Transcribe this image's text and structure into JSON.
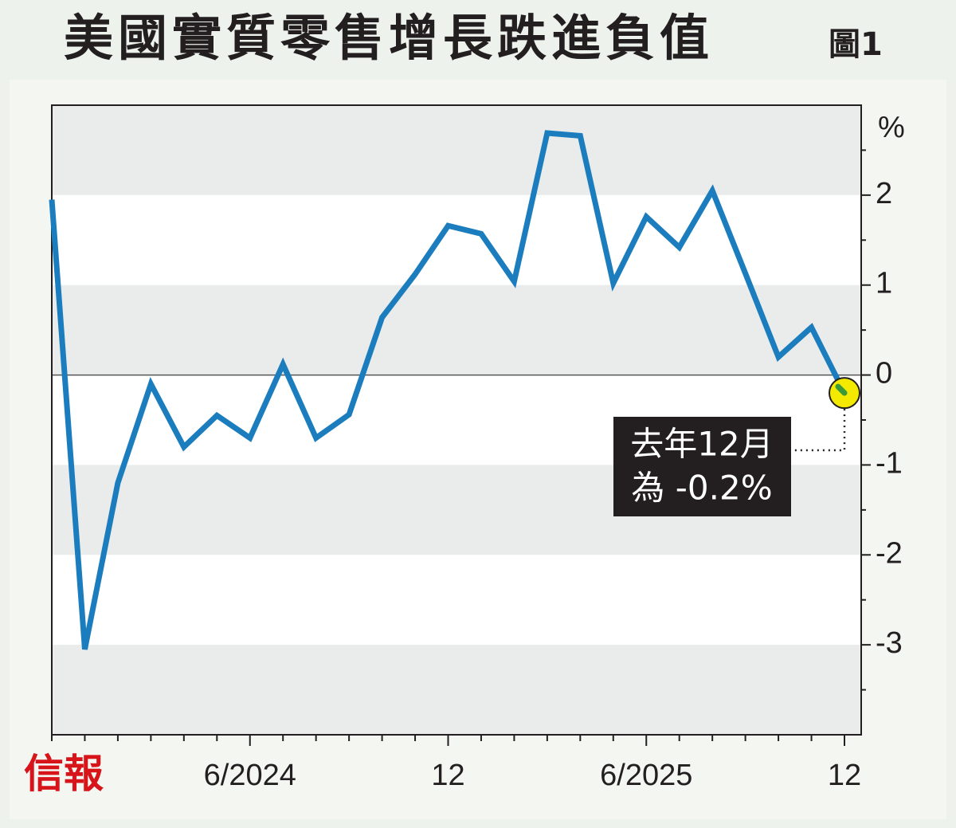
{
  "chart_data": {
    "type": "line",
    "title": "美國實質零售增長跌進負值",
    "figure_label": "圖1",
    "y_unit": "%",
    "source": "信報",
    "categories": [
      null,
      null,
      null,
      null,
      null,
      null,
      "6/2024",
      null,
      null,
      null,
      null,
      null,
      "12",
      null,
      null,
      null,
      null,
      null,
      "6/2025",
      null,
      null,
      null,
      null,
      null,
      "12"
    ],
    "series": [
      {
        "name": "實質零售增長",
        "color": "#1b7dbd",
        "values": [
          1.95,
          -3.05,
          -1.2,
          -0.1,
          -0.8,
          -0.45,
          -0.7,
          0.12,
          -0.7,
          -0.44,
          0.64,
          1.12,
          1.66,
          1.57,
          1.04,
          2.69,
          2.66,
          1.02,
          1.76,
          1.42,
          2.05,
          1.13,
          0.2,
          0.53,
          -0.2
        ]
      }
    ],
    "ylim": [
      -4,
      3
    ],
    "yticks": [
      -3,
      -2,
      -1,
      0,
      1,
      2
    ],
    "annotation": [
      "去年12月",
      "為 -0.2%"
    ],
    "highlight_color": "#f3ea00"
  }
}
